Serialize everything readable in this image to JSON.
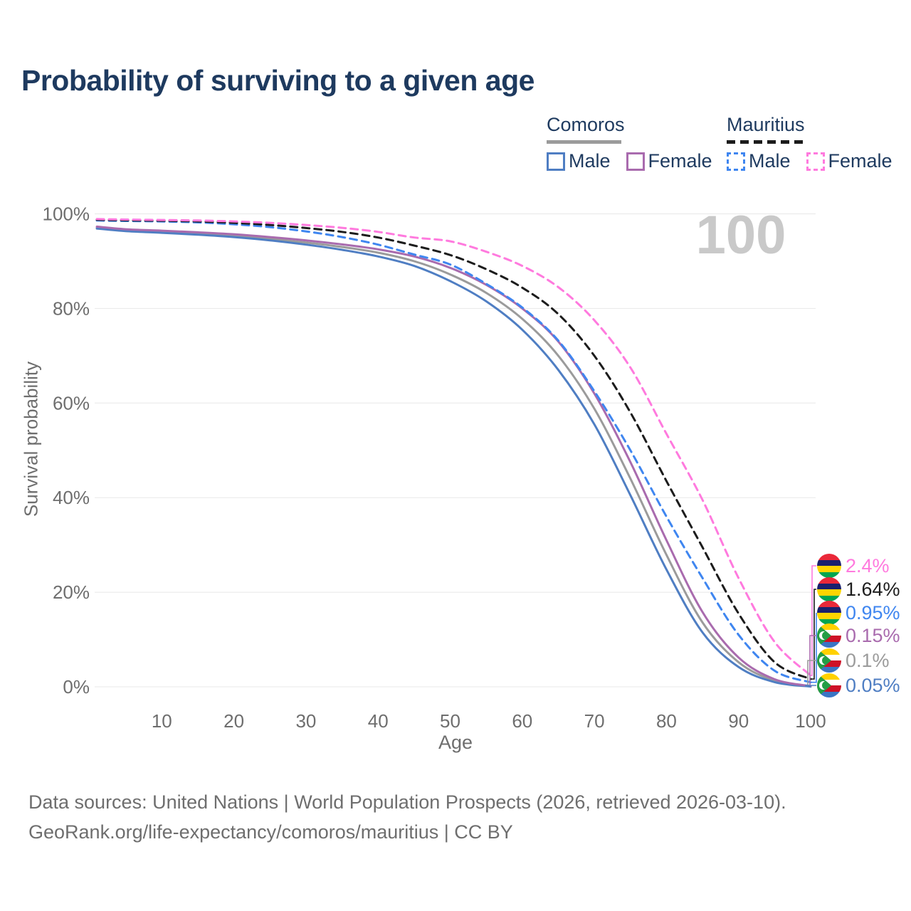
{
  "page": {
    "title": "Probability of surviving to a given age",
    "watermark_value": "100"
  },
  "legend": {
    "groups": [
      {
        "label": "Comoros",
        "line_style": "solid",
        "items": [
          {
            "label": "Male",
            "color": "#4f7ec3"
          },
          {
            "label": "Female",
            "color": "#a96bae"
          }
        ]
      },
      {
        "label": "Mauritius",
        "line_style": "dashed",
        "items": [
          {
            "label": "Male",
            "color": "#3f86f0"
          },
          {
            "label": "Female",
            "color": "#ff7ade"
          }
        ]
      }
    ]
  },
  "chart_data": {
    "type": "line",
    "title": "Probability of surviving to a given age",
    "xlabel": "Age",
    "ylabel": "Survival probability",
    "xlim": [
      0,
      100
    ],
    "ylim_pct": [
      0,
      100
    ],
    "grid": "horizontal",
    "legend_position": "top-right",
    "xticks": [
      10,
      20,
      30,
      40,
      50,
      60,
      70,
      80,
      90,
      100
    ],
    "yticks": [
      {
        "value": 0,
        "label": "0%"
      },
      {
        "value": 20,
        "label": "20%"
      },
      {
        "value": 40,
        "label": "40%"
      },
      {
        "value": 60,
        "label": "60%"
      },
      {
        "value": 80,
        "label": "80%"
      },
      {
        "value": 100,
        "label": "100%"
      }
    ],
    "ages": [
      1,
      5,
      10,
      15,
      20,
      25,
      30,
      35,
      40,
      45,
      50,
      55,
      60,
      65,
      70,
      75,
      80,
      85,
      90,
      95,
      100
    ],
    "series": [
      {
        "id": "comoros-total",
        "name": "Comoros (both sexes)",
        "line": "solid",
        "color": "#9b9b9b",
        "values": [
          97.1,
          96.55,
          96.2,
          95.85,
          95.4,
          94.75,
          93.95,
          93.0,
          91.8,
          90.0,
          87.2,
          83.3,
          77.8,
          70.0,
          58.8,
          44.0,
          27.9,
          13.6,
          5.2,
          1.3,
          0.1
        ]
      },
      {
        "id": "comoros-male",
        "name": "Comoros Male",
        "line": "solid",
        "color": "#4f7ec3",
        "values": [
          96.9,
          96.35,
          96.0,
          95.6,
          95.1,
          94.4,
          93.5,
          92.4,
          91.0,
          89.0,
          85.8,
          81.5,
          75.5,
          67.0,
          55.5,
          40.5,
          24.8,
          11.5,
          4.2,
          1.0,
          0.05
        ]
      },
      {
        "id": "comoros-female",
        "name": "Comoros Female",
        "line": "solid",
        "color": "#a96bae",
        "values": [
          97.3,
          96.75,
          96.45,
          96.1,
          95.7,
          95.1,
          94.4,
          93.55,
          92.5,
          91.0,
          88.6,
          85.0,
          80.0,
          73.0,
          62.0,
          47.5,
          31.0,
          15.8,
          6.2,
          1.6,
          0.15
        ]
      },
      {
        "id": "mauritius-male",
        "name": "Mauritius Male",
        "line": "dashed",
        "color": "#3f86f0",
        "values": [
          98.6,
          98.5,
          98.4,
          98.2,
          97.8,
          97.2,
          96.3,
          95.1,
          93.5,
          91.4,
          89.3,
          85.2,
          80.2,
          73.2,
          62.5,
          50.0,
          36.0,
          23.0,
          11.0,
          3.4,
          0.95
        ]
      },
      {
        "id": "mauritius-total",
        "name": "Mauritius (both sexes)",
        "line": "dashed",
        "color": "#1c1c1c",
        "values": [
          98.75,
          98.65,
          98.55,
          98.4,
          98.1,
          97.65,
          97.0,
          96.2,
          95.0,
          93.3,
          91.3,
          88.3,
          84.4,
          78.8,
          70.0,
          58.0,
          43.5,
          29.5,
          15.5,
          5.2,
          1.64
        ]
      },
      {
        "id": "mauritius-female",
        "name": "Mauritius Female",
        "line": "dashed",
        "color": "#ff7ade",
        "values": [
          98.9,
          98.8,
          98.7,
          98.6,
          98.4,
          98.1,
          97.65,
          97.05,
          96.2,
          95.0,
          94.2,
          92.0,
          89.0,
          84.5,
          77.5,
          67.5,
          53.5,
          39.5,
          23.0,
          9.5,
          2.4
        ]
      }
    ],
    "end_labels": [
      {
        "series": "mauritius-female",
        "value": "2.4%",
        "pct": 2.4,
        "color": "#ff7ade",
        "flag": "mauritius"
      },
      {
        "series": "mauritius-total",
        "value": "1.64%",
        "pct": 1.64,
        "color": "#1c1c1c",
        "flag": "mauritius"
      },
      {
        "series": "mauritius-male",
        "value": "0.95%",
        "pct": 0.95,
        "color": "#3f86f0",
        "flag": "mauritius"
      },
      {
        "series": "comoros-female",
        "value": "0.15%",
        "pct": 0.15,
        "color": "#a96bae",
        "flag": "comoros"
      },
      {
        "series": "comoros-total",
        "value": "0.1%",
        "pct": 0.1,
        "color": "#9b9b9b",
        "flag": "comoros"
      },
      {
        "series": "comoros-male",
        "value": "0.05%",
        "pct": 0.05,
        "color": "#4f7ec3",
        "flag": "comoros"
      }
    ],
    "colors": {
      "grid": "#e8e8e8",
      "axis_text": "#6e6e6e",
      "title_text": "#1e3a5f",
      "watermark": "#c9c9c9"
    }
  },
  "footer": {
    "line1": "Data sources: United Nations | World Population Prospects (2026, retrieved 2026-03-10).",
    "line2": "GeoRank.org/life-expectancy/comoros/mauritius | CC BY"
  }
}
